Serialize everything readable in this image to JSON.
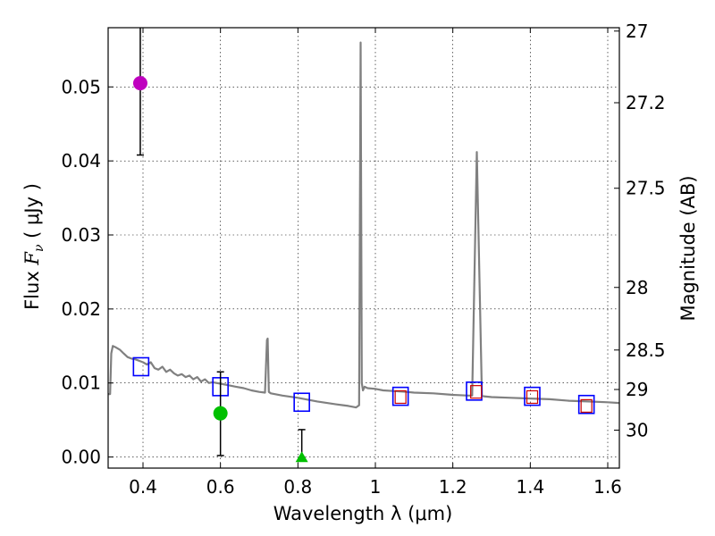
{
  "chart_data": {
    "type": "scatter",
    "xlabel": "Wavelength  λ (μm)",
    "ylabel_prefix": "Flux  ",
    "ylabel_symbol": "F",
    "ylabel_subscript": "ν",
    "ylabel_units": " ( μJy )",
    "ylabel_right": "Magnitude (AB)",
    "xlim": [
      0.31,
      1.63
    ],
    "ylim": [
      -0.0015,
      0.058
    ],
    "grid": true,
    "x_ticks": [
      0.4,
      0.6,
      0.8,
      1.0,
      1.2,
      1.4,
      1.6
    ],
    "x_tick_labels": [
      "0.4",
      "0.6",
      "0.8",
      "1",
      "1.2",
      "1.4",
      "1.6"
    ],
    "y_ticks": [
      0.0,
      0.01,
      0.02,
      0.03,
      0.04,
      0.05
    ],
    "y_tick_labels": [
      "0.00",
      "0.01",
      "0.02",
      "0.03",
      "0.04",
      "0.05"
    ],
    "right_ticks_mag": [
      27,
      27.2,
      27.5,
      28,
      28.5,
      29,
      30
    ],
    "right_tick_labels": [
      "27",
      "27.2",
      "27.5",
      "28",
      "28.5",
      "29",
      "30"
    ],
    "series": [
      {
        "name": "model-sed",
        "kind": "line",
        "color": "#808080",
        "x": [
          0.31,
          0.315,
          0.318,
          0.322,
          0.33,
          0.34,
          0.35,
          0.36,
          0.37,
          0.38,
          0.39,
          0.4,
          0.41,
          0.42,
          0.43,
          0.44,
          0.45,
          0.46,
          0.47,
          0.48,
          0.49,
          0.5,
          0.51,
          0.52,
          0.53,
          0.54,
          0.55,
          0.56,
          0.57,
          0.58,
          0.6,
          0.62,
          0.64,
          0.66,
          0.68,
          0.7,
          0.715,
          0.72,
          0.722,
          0.725,
          0.73,
          0.76,
          0.8,
          0.85,
          0.9,
          0.93,
          0.95,
          0.958,
          0.962,
          0.965,
          0.968,
          0.972,
          0.98,
          1.0,
          1.02,
          1.05,
          1.08,
          1.1,
          1.15,
          1.2,
          1.24,
          1.25,
          1.262,
          1.275,
          1.28,
          1.3,
          1.35,
          1.4,
          1.45,
          1.5,
          1.55,
          1.6,
          1.63
        ],
        "y": [
          0.0085,
          0.0085,
          0.014,
          0.015,
          0.0148,
          0.0145,
          0.014,
          0.0135,
          0.0133,
          0.0132,
          0.013,
          0.0128,
          0.0125,
          0.0128,
          0.012,
          0.0118,
          0.0122,
          0.0115,
          0.0118,
          0.0113,
          0.011,
          0.0112,
          0.0108,
          0.011,
          0.0105,
          0.0108,
          0.0102,
          0.0105,
          0.01,
          0.0101,
          0.0099,
          0.0097,
          0.0095,
          0.0093,
          0.009,
          0.0088,
          0.0087,
          0.0158,
          0.016,
          0.0088,
          0.0086,
          0.0083,
          0.008,
          0.0075,
          0.0071,
          0.0069,
          0.0067,
          0.007,
          0.056,
          0.01,
          0.009,
          0.0095,
          0.0093,
          0.0092,
          0.009,
          0.0089,
          0.0088,
          0.0087,
          0.0086,
          0.0084,
          0.0083,
          0.0083,
          0.0412,
          0.0083,
          0.0082,
          0.0081,
          0.008,
          0.0079,
          0.0078,
          0.0076,
          0.0075,
          0.0074,
          0.0073
        ]
      },
      {
        "name": "model-bandpass-fluxes",
        "kind": "open-square",
        "color": "#0000ff",
        "x": [
          0.395,
          0.6,
          0.81,
          1.065,
          1.255,
          1.405,
          1.545
        ],
        "y": [
          0.0122,
          0.0095,
          0.0074,
          0.0082,
          0.0089,
          0.0082,
          0.0071
        ]
      },
      {
        "name": "observed-ir-fluxes",
        "kind": "small-open-square",
        "color": "#cc0000",
        "x": [
          1.065,
          1.26,
          1.405,
          1.545
        ],
        "y": [
          0.0081,
          0.0088,
          0.0081,
          0.0069
        ]
      },
      {
        "name": "observed-uv-point",
        "kind": "circle",
        "color": "#bf00bf",
        "x": [
          0.393
        ],
        "y": [
          0.0505
        ],
        "yerr_low": [
          0.0408
        ],
        "yerr_high": [
          0.058
        ]
      },
      {
        "name": "observed-optical-point",
        "kind": "circle",
        "color": "#00c000",
        "x": [
          0.6
        ],
        "y": [
          0.0059
        ],
        "yerr_low": [
          0.0002
        ],
        "yerr_high": [
          0.0115
        ]
      },
      {
        "name": "observed-upper-limit",
        "kind": "triangle",
        "color": "#00c000",
        "x": [
          0.81
        ],
        "y": [
          -0.0002
        ],
        "yerr_low": [
          -0.0002
        ],
        "yerr_high": [
          0.0037
        ]
      }
    ]
  }
}
